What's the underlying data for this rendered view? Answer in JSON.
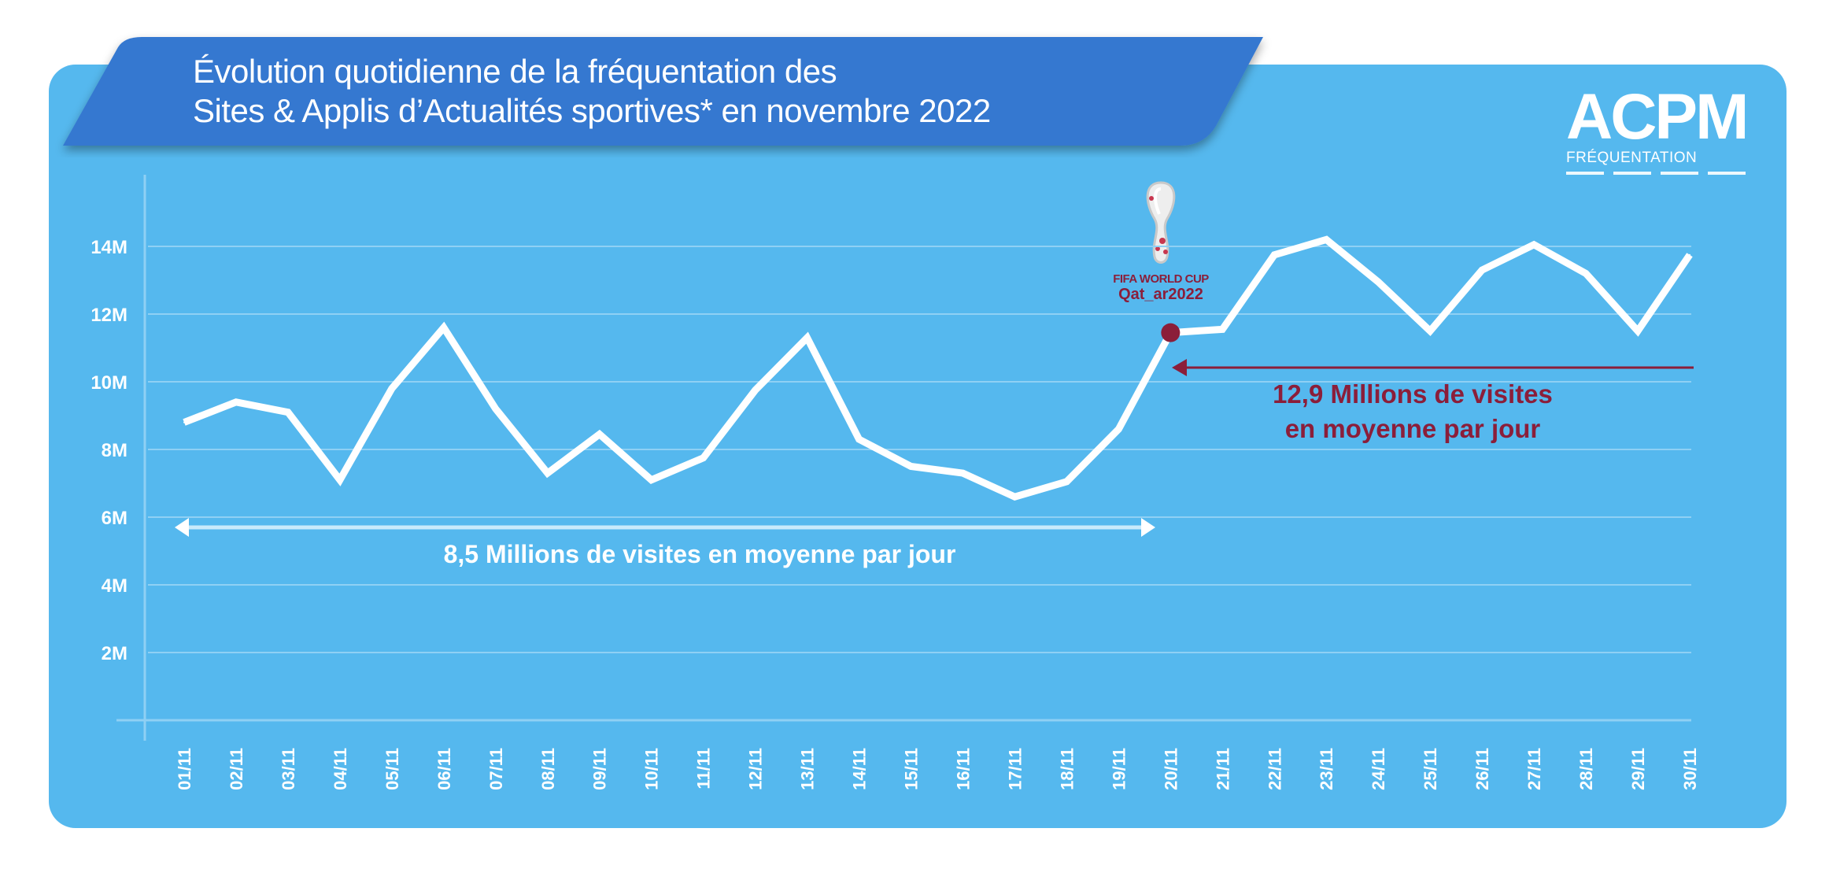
{
  "title": {
    "line1": "Évolution quotidienne de la fréquentation des",
    "line2": "Sites & Applis d’Actualités sportives* en novembre 2022"
  },
  "logo": {
    "brand": "ACPM",
    "subtitle": "FRÉQUENTATION"
  },
  "event_logo": {
    "line1": "FIFA WORLD CUP",
    "line2": "Qat_ar2022",
    "icon": "world-cup-trophy-icon"
  },
  "colors": {
    "background": "#55b8ee",
    "banner": "#3478d0",
    "line": "#ffffff",
    "accent": "#8b1e3a",
    "grid": "#8fd0f4"
  },
  "chart_data": {
    "type": "line",
    "title": "Évolution quotidienne de la fréquentation des Sites & Applis d’Actualités sportives* en novembre 2022",
    "xlabel": "",
    "ylabel": "",
    "ylim": [
      0,
      16000000
    ],
    "grid": true,
    "yticks": [
      2000000,
      4000000,
      6000000,
      8000000,
      10000000,
      12000000,
      14000000
    ],
    "ytick_labels": [
      "2M",
      "4M",
      "6M",
      "8M",
      "10M",
      "12M",
      "14M"
    ],
    "categories": [
      "01/11",
      "02/11",
      "03/11",
      "04/11",
      "05/11",
      "06/11",
      "07/11",
      "08/11",
      "09/11",
      "10/11",
      "11/11",
      "12/11",
      "13/11",
      "14/11",
      "15/11",
      "16/11",
      "17/11",
      "18/11",
      "19/11",
      "20/11",
      "21/11",
      "22/11",
      "23/11",
      "24/11",
      "25/11",
      "26/11",
      "27/11",
      "28/11",
      "29/11",
      "30/11"
    ],
    "values": [
      8.8,
      9.4,
      9.1,
      7.1,
      9.8,
      11.6,
      9.2,
      7.3,
      8.45,
      7.1,
      7.75,
      9.75,
      11.3,
      8.3,
      7.5,
      7.3,
      6.6,
      7.05,
      8.6,
      11.45,
      11.55,
      13.75,
      14.2,
      12.95,
      11.5,
      13.3,
      14.05,
      13.2,
      11.5,
      13.75
    ],
    "value_unit": "millions",
    "highlight_point": "20/11",
    "annotations": [
      {
        "text": "8,5 Millions de visites en moyenne par jour",
        "from": "01/11",
        "to": "20/11"
      },
      {
        "line1": "12,9 Millions de visites",
        "line2": "en moyenne par jour",
        "from": "20/11",
        "to": "30/11"
      }
    ]
  }
}
